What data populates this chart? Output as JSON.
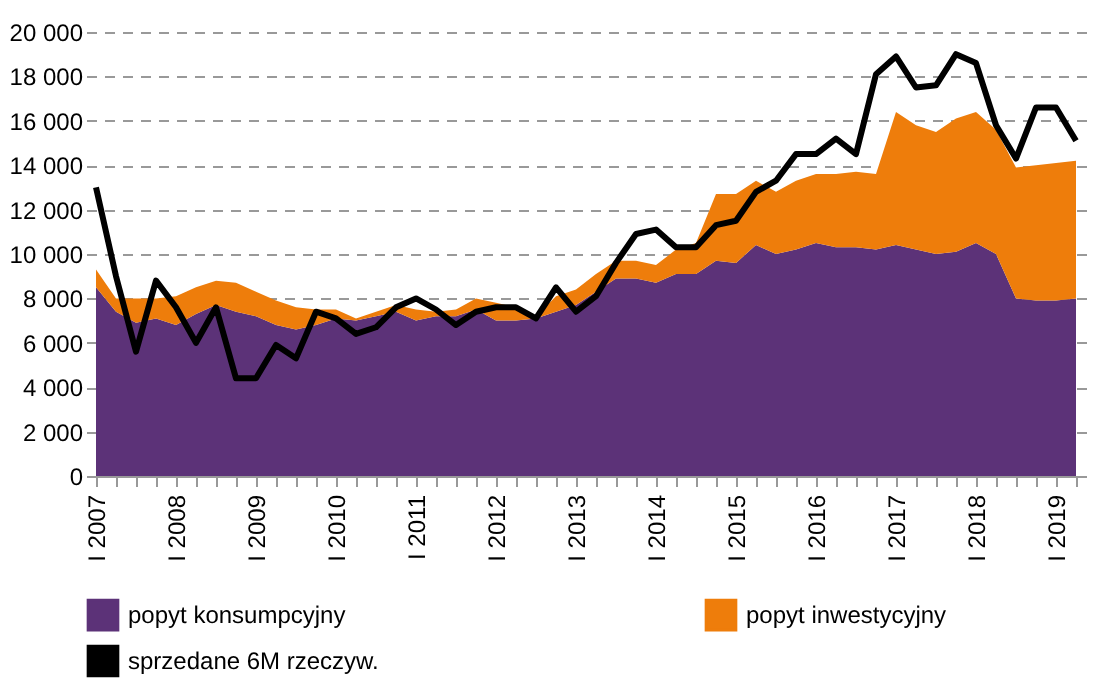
{
  "chart_data": {
    "type": "area",
    "stacked": true,
    "categories": [
      "I 2007",
      null,
      null,
      null,
      "I 2008",
      null,
      null,
      null,
      "I 2009",
      null,
      null,
      null,
      "I 2010",
      null,
      null,
      null,
      "I 2011",
      null,
      null,
      null,
      "I 2012",
      null,
      null,
      null,
      "I 2013",
      null,
      null,
      null,
      "I 2014",
      null,
      null,
      null,
      "I 2015",
      null,
      null,
      null,
      "I 2016",
      null,
      null,
      null,
      "I 2017",
      null,
      null,
      null,
      "I 2018",
      null,
      null,
      null,
      "I 2019",
      null
    ],
    "series": [
      {
        "name": "popyt konsumpcyjny",
        "color": "#5c3278",
        "values": [
          8500,
          7400,
          6900,
          7100,
          6800,
          7300,
          7700,
          7400,
          7200,
          6800,
          6600,
          6800,
          7100,
          7000,
          7200,
          7400,
          7000,
          7200,
          7200,
          7500,
          7000,
          7000,
          7100,
          7400,
          7700,
          8300,
          8900,
          8900,
          8700,
          9100,
          9100,
          9700,
          9600,
          10400,
          10000,
          10200,
          10500,
          10300,
          10300,
          10200,
          10400,
          10200,
          10000,
          10100,
          10500,
          10000,
          8000,
          7900,
          7900,
          8000
        ]
      },
      {
        "name": "popyt inwestycyjny",
        "color": "#ee7d0b",
        "values": [
          800,
          600,
          1100,
          900,
          1300,
          1200,
          1100,
          1300,
          1100,
          1100,
          1000,
          700,
          400,
          100,
          200,
          300,
          500,
          200,
          300,
          500,
          800,
          600,
          100,
          700,
          700,
          800,
          800,
          800,
          800,
          1100,
          1400,
          3000,
          3100,
          2900,
          2800,
          3100,
          3100,
          3300,
          3400,
          3400,
          6000,
          5600,
          5500,
          6000,
          5900,
          5600,
          5900,
          6100,
          6200,
          6200
        ]
      },
      {
        "name": "sprzedane 6M rzeczyw.",
        "color": "#000000",
        "type": "line",
        "values": [
          13000,
          9000,
          5600,
          8800,
          7600,
          6000,
          7600,
          4400,
          4400,
          5900,
          5300,
          7400,
          7100,
          6400,
          6700,
          7600,
          8000,
          7500,
          6800,
          7400,
          7600,
          7600,
          7100,
          8500,
          7400,
          8100,
          9600,
          10900,
          11100,
          10300,
          10300,
          11300,
          11500,
          12800,
          13300,
          14500,
          14500,
          15200,
          14500,
          18100,
          18900,
          17500,
          17600,
          19000,
          18600,
          15800,
          14300,
          16600,
          16600,
          15100
        ]
      }
    ],
    "ylim": [
      0,
      20000
    ],
    "yticks": [
      {
        "value": 0,
        "label": "0"
      },
      {
        "value": 2000,
        "label": "2 000"
      },
      {
        "value": 4000,
        "label": "4 000"
      },
      {
        "value": 6000,
        "label": "6 000"
      },
      {
        "value": 8000,
        "label": "8 000"
      },
      {
        "value": 10000,
        "label": "10 000"
      },
      {
        "value": 12000,
        "label": "12 000"
      },
      {
        "value": 14000,
        "label": "14 000"
      },
      {
        "value": 16000,
        "label": "16 000"
      },
      {
        "value": 18000,
        "label": "18 000"
      },
      {
        "value": 20000,
        "label": "20 000"
      }
    ],
    "grid": "y",
    "legend": "bottom",
    "line_style": "solid",
    "marker": "none"
  }
}
